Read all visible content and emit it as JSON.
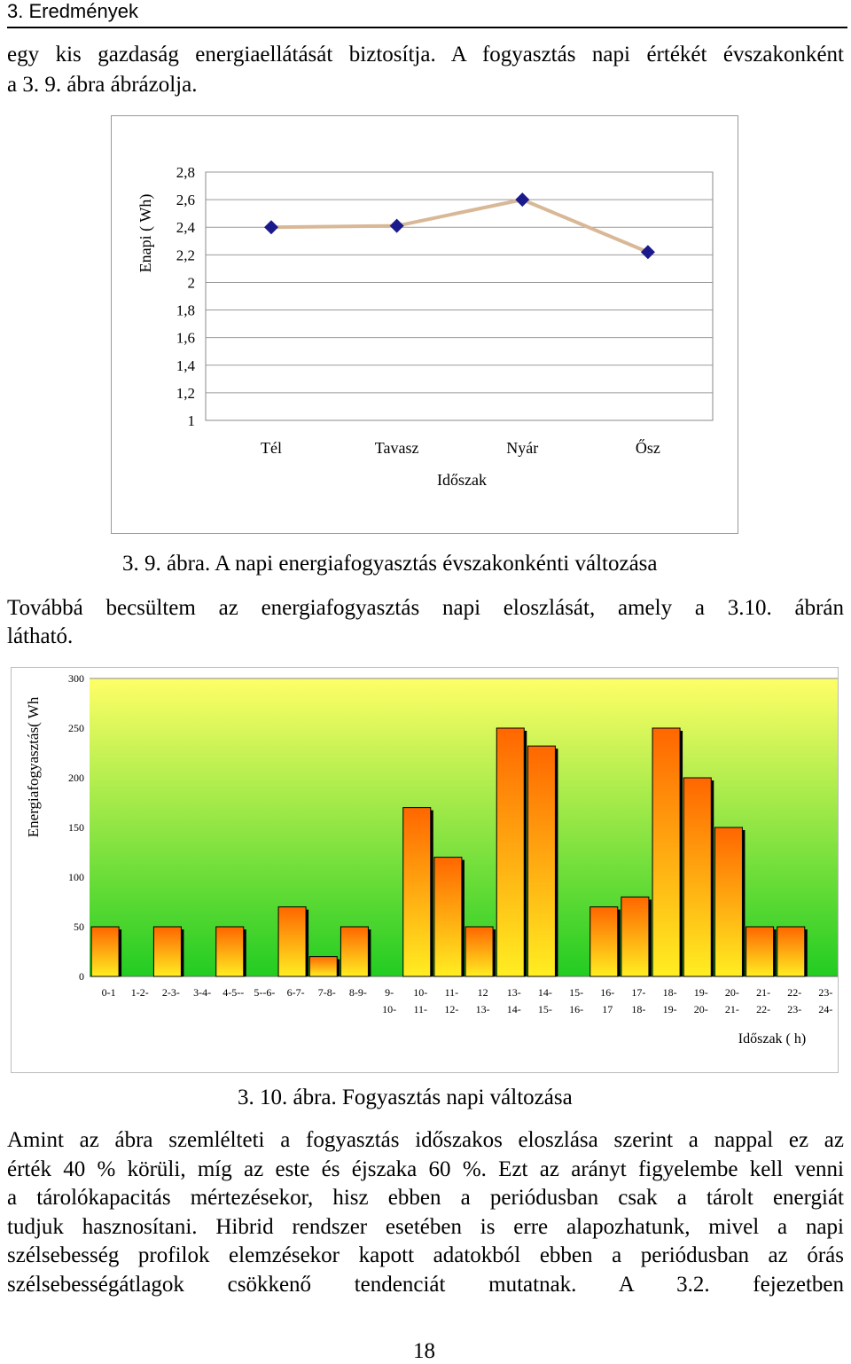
{
  "header": {
    "section": "3. Eredmények"
  },
  "para1": {
    "line1": "egy kis gazdaság energiaellátását biztosítja. A fogyasztás napi értékét évszakonként",
    "line2": "a 3. 9. ábra ábrázolja."
  },
  "caption1": "3. 9. ábra. A napi energiafogyasztás évszakonkénti változása",
  "para2": {
    "line1": "Továbbá becsültem az energiafogyasztás napi eloszlását, amely a 3.10. ábrán",
    "line2": "látható."
  },
  "caption2": "3. 10. ábra. Fogyasztás napi változása",
  "para3": {
    "lines": [
      "Amint az ábra szemlélteti a fogyasztás időszakos eloszlása szerint a nappal ez az",
      "érték 40 % körüli, míg az este és éjszaka 60 %. Ezt az arányt figyelembe kell venni",
      "a tárolókapacitás mértezésekor, hisz ebben a periódusban csak a tárolt energiát",
      "tudjuk hasznosítani. Hibrid rendszer esetében is erre alapozhatunk, mivel a napi",
      "szélsebesség profilok elemzésekor kapott adatokból ebben a periódusban az órás",
      "szélsebességátlagok csökkenő tendenciát mutatnak. A 3.2. fejezetben"
    ]
  },
  "page_number": "18",
  "chart_data": [
    {
      "type": "line",
      "ylabel": "Enapi ( Wh)",
      "xlabel": "Időszak",
      "categories": [
        "Tél",
        "Tavasz",
        "Nyár",
        "Ősz"
      ],
      "values": [
        2.4,
        2.41,
        2.6,
        2.22
      ],
      "ylim": [
        1,
        2.8
      ],
      "yticks": [
        "1",
        "1,2",
        "1,4",
        "1,6",
        "1,8",
        "2",
        "2,2",
        "2,4",
        "2,6",
        "2,8"
      ],
      "grid": true,
      "line_color": "#D8B896",
      "marker_color": "#1A1A8C"
    },
    {
      "type": "bar",
      "ylabel": "Energiafogyasztás( Wh",
      "xlabel": "Időszak ( h)",
      "categories": [
        [
          "0-1",
          ""
        ],
        [
          "1-2-",
          ""
        ],
        [
          "2-3-",
          ""
        ],
        [
          "3-4-",
          ""
        ],
        [
          "4-5--",
          ""
        ],
        [
          "5--6-",
          ""
        ],
        [
          "6-7-",
          ""
        ],
        [
          "7-8-",
          ""
        ],
        [
          "8-9-",
          ""
        ],
        [
          "9-",
          "10-"
        ],
        [
          "10-",
          "11-"
        ],
        [
          "11-",
          "12-"
        ],
        [
          "12",
          "13-"
        ],
        [
          "13-",
          "14-"
        ],
        [
          "14-",
          "15-"
        ],
        [
          "15-",
          "16-"
        ],
        [
          "16-",
          "17"
        ],
        [
          "17-",
          "18-"
        ],
        [
          "18-",
          "19-"
        ],
        [
          "19-",
          "20-"
        ],
        [
          "20-",
          "21-"
        ],
        [
          "21-",
          "22-"
        ],
        [
          "22-",
          "23-"
        ],
        [
          "23-",
          "24-"
        ]
      ],
      "values": [
        50,
        0,
        50,
        0,
        50,
        0,
        70,
        20,
        50,
        0,
        170,
        120,
        50,
        250,
        232,
        0,
        70,
        80,
        250,
        200,
        150,
        50,
        50,
        0
      ],
      "ylim": [
        0,
        300
      ],
      "yticks": [
        "0",
        "50",
        "100",
        "150",
        "200",
        "250",
        "300"
      ],
      "background_top": "#FFFF66",
      "background_bottom": "#22CC22",
      "bar_top_color": "#FF6600",
      "bar_bottom_color": "#FFEE22"
    }
  ]
}
